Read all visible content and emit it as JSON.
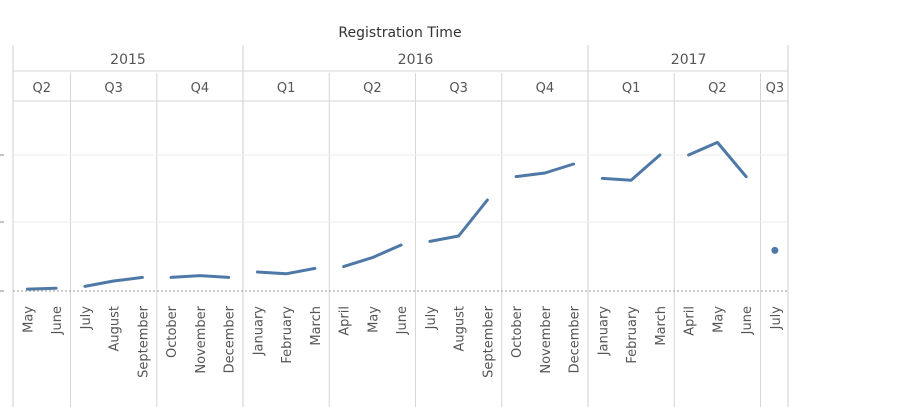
{
  "chart_data": {
    "type": "line",
    "title": "Registration Time",
    "xlabel": "",
    "ylabel": "",
    "y_tick_labels_visible": false,
    "ylim": [
      0,
      100
    ],
    "grid": true,
    "line_color": "#4e79a7",
    "years": [
      {
        "label": "2015",
        "quarters": [
          {
            "label": "Q2",
            "months": [
              "May",
              "June"
            ]
          },
          {
            "label": "Q3",
            "months": [
              "July",
              "August",
              "September"
            ]
          },
          {
            "label": "Q4",
            "months": [
              "October",
              "November",
              "December"
            ]
          }
        ]
      },
      {
        "label": "2016",
        "quarters": [
          {
            "label": "Q1",
            "months": [
              "January",
              "February",
              "March"
            ]
          },
          {
            "label": "Q2",
            "months": [
              "April",
              "May",
              "June"
            ]
          },
          {
            "label": "Q3",
            "months": [
              "July",
              "August",
              "September"
            ]
          },
          {
            "label": "Q4",
            "months": [
              "October",
              "November",
              "December"
            ]
          }
        ]
      },
      {
        "label": "2017",
        "quarters": [
          {
            "label": "Q1",
            "months": [
              "January",
              "February",
              "March"
            ]
          },
          {
            "label": "Q2",
            "months": [
              "April",
              "May",
              "June"
            ]
          },
          {
            "label": "Q3",
            "months": [
              "July"
            ]
          }
        ]
      }
    ],
    "series": [
      {
        "values": [
          0.5,
          1,
          2,
          5,
          7,
          7,
          8,
          7,
          10,
          9,
          12,
          13,
          18,
          25,
          27,
          30,
          50,
          63,
          65,
          70,
          62,
          61,
          75,
          75,
          82,
          63,
          22
        ]
      }
    ]
  }
}
